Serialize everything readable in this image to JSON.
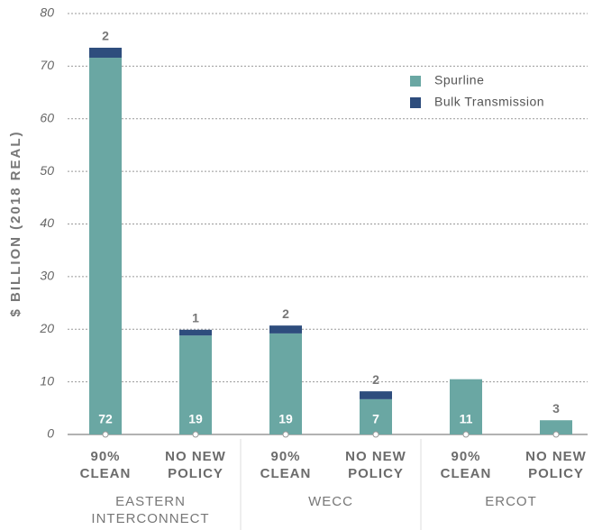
{
  "chart_data": {
    "type": "stacked_bar",
    "ylabel": "$ BILLION (2018 REAL)",
    "categories": [
      "90% CLEAN",
      "NO NEW POLICY",
      "90% CLEAN",
      "NO NEW POLICY",
      "90% CLEAN",
      "NO NEW POLICY"
    ],
    "groups": [
      "EASTERN INTERCONNECT",
      "WECC",
      "ERCOT"
    ],
    "series": [
      {
        "name": "Spurline",
        "color": "#6aa7a3",
        "values": [
          71.6,
          18.8,
          19.2,
          6.7,
          10.5,
          2.7
        ],
        "value_labels": [
          "72",
          "19",
          "19",
          "7",
          "11",
          "3"
        ]
      },
      {
        "name": "Bulk Transmission",
        "color": "#2e4d7d",
        "values": [
          1.9,
          1.1,
          1.5,
          1.5,
          0,
          0
        ],
        "value_labels": [
          "2",
          "1",
          "2",
          "2",
          null,
          null
        ]
      }
    ],
    "ylim": [
      0,
      80
    ],
    "yticks": [
      0,
      10,
      20,
      30,
      40,
      50,
      60,
      70,
      80
    ],
    "grid": true
  }
}
